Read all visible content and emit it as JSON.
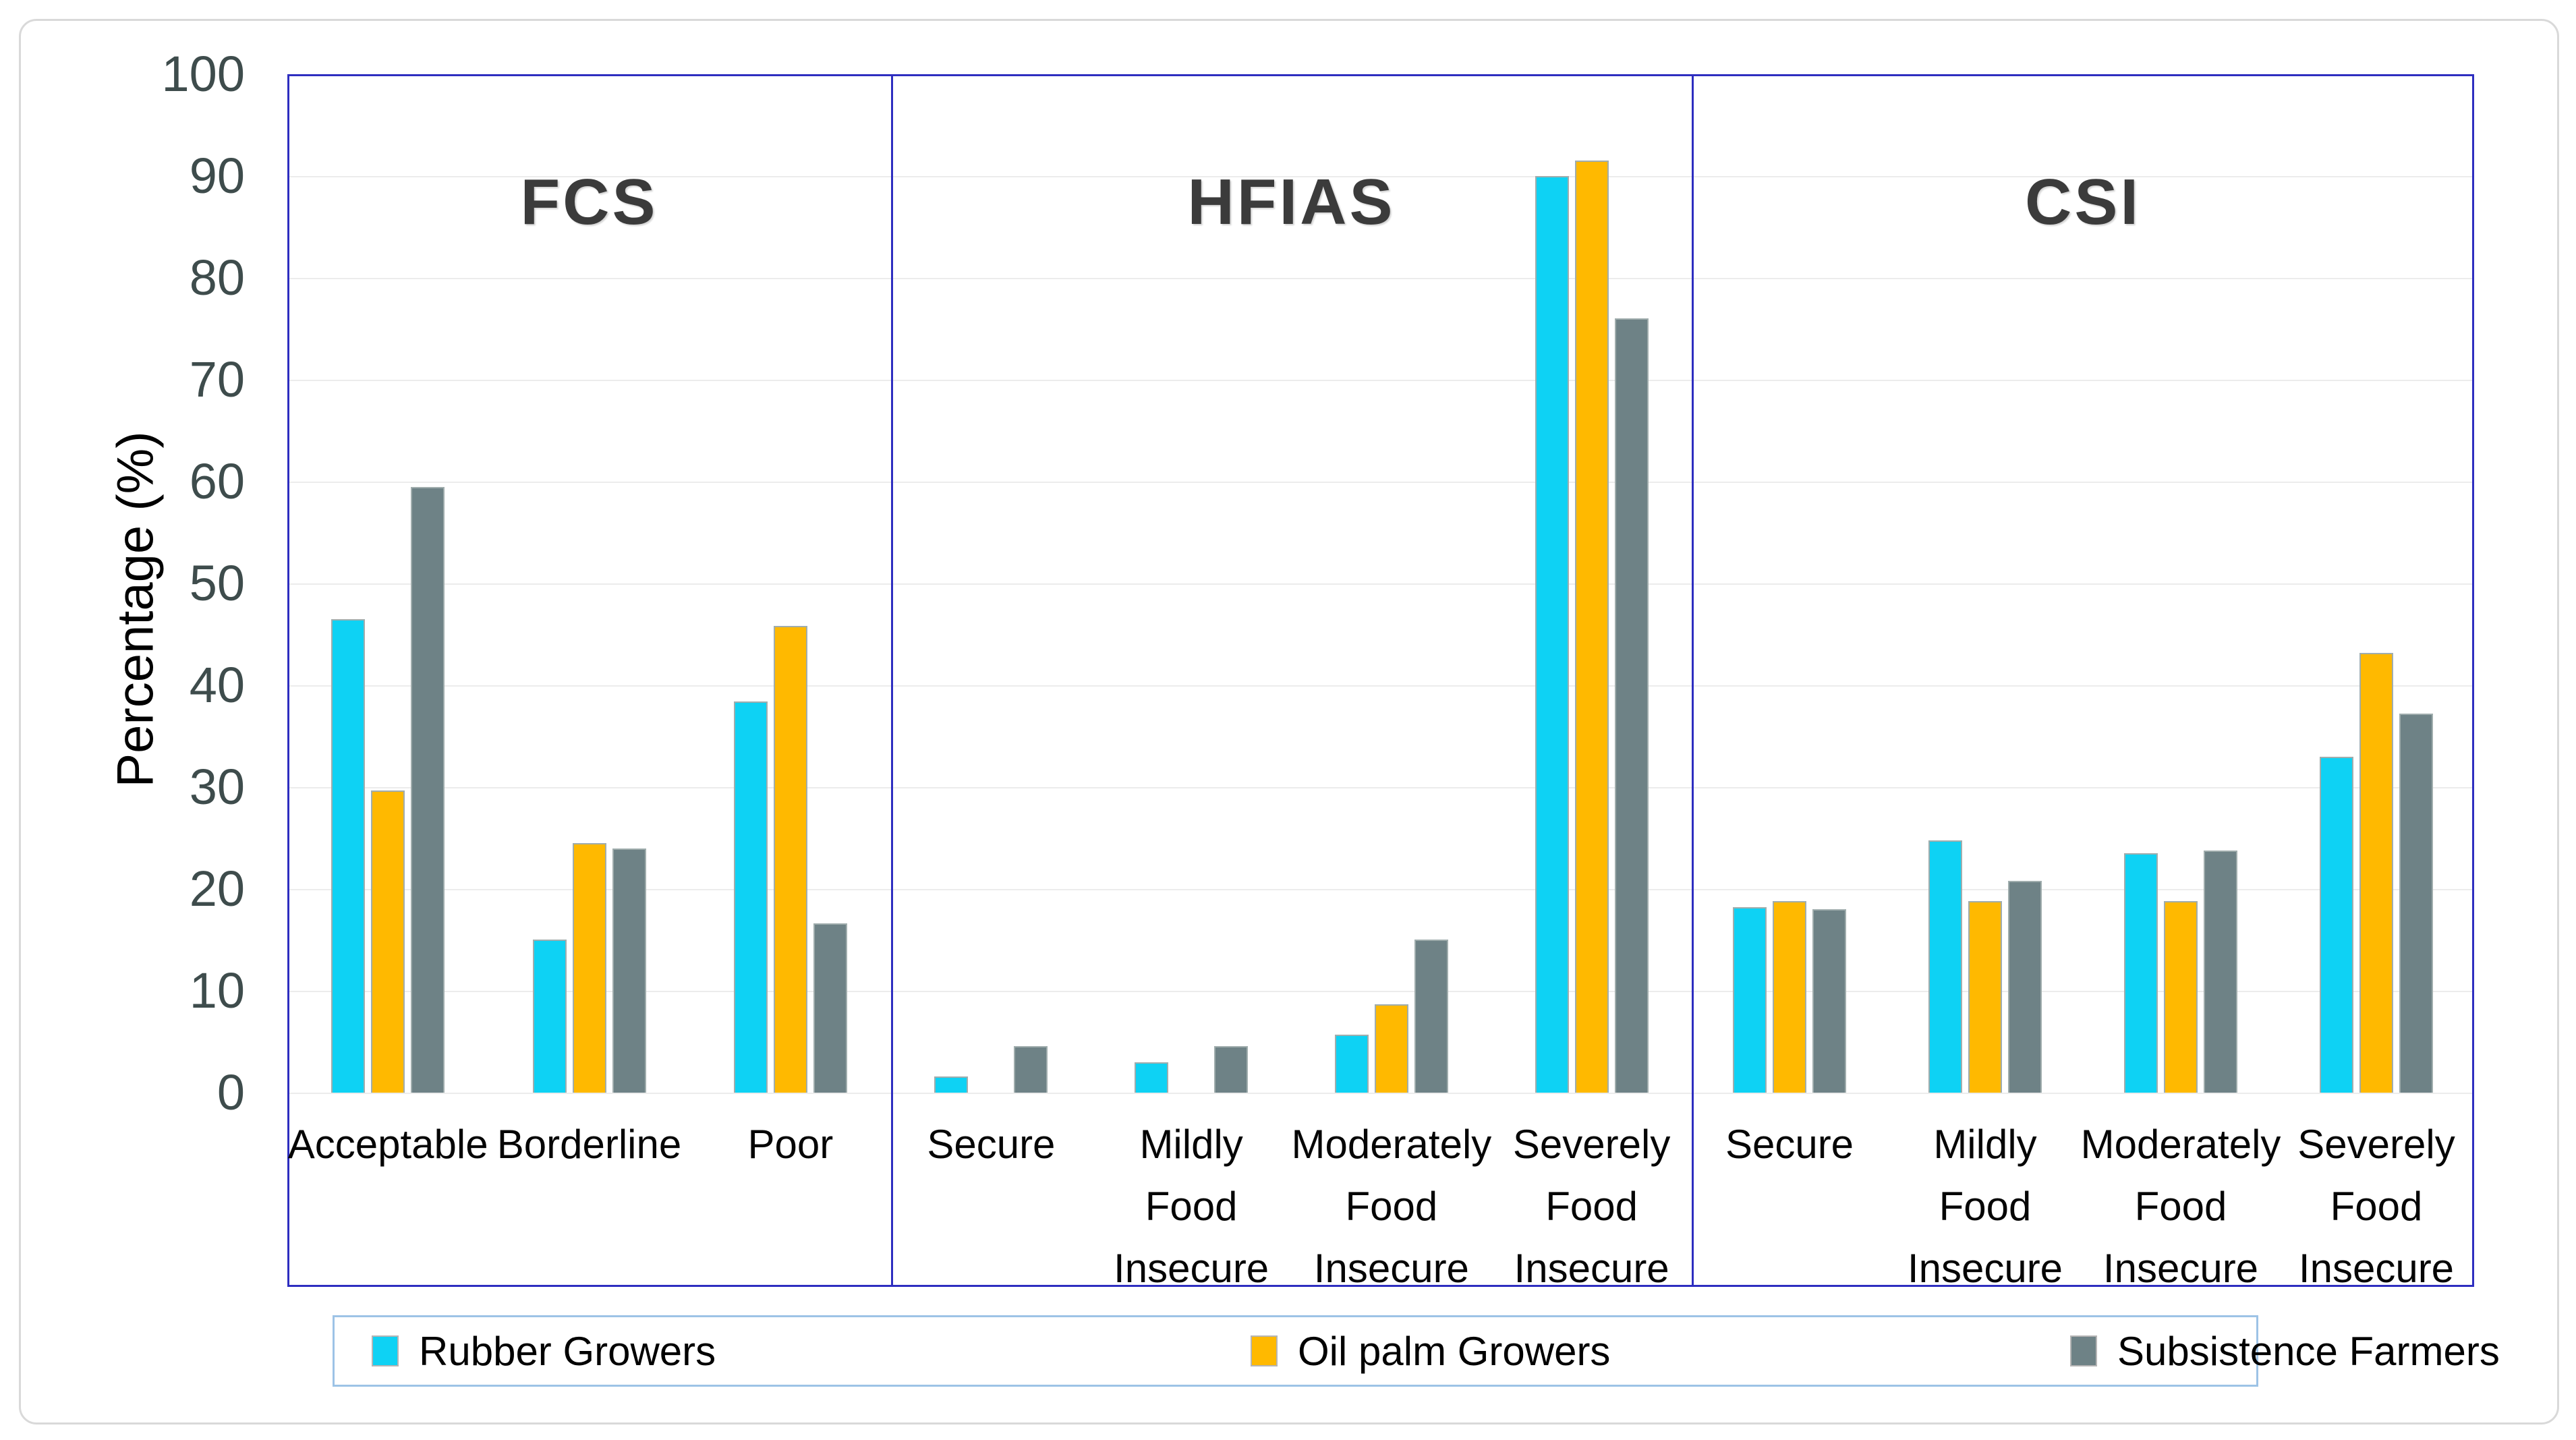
{
  "figure": {
    "y_axis_title": "Percentage (%)",
    "y_ticks": [
      0,
      10,
      20,
      30,
      40,
      50,
      60,
      70,
      80,
      90,
      100
    ],
    "colors": {
      "rubber": "#0ed2f4",
      "oilpalm": "#ffb900",
      "subsistence": "#6e8286",
      "plot_border": "#2e2ec0",
      "gridline": "#ececec",
      "tick_text": "#3e4c4c",
      "title_text": "#3b3b3b",
      "legend_border": "#9dc3e6",
      "outer_border": "#d9d9d9"
    },
    "legend": {
      "items": [
        {
          "label": "Rubber Growers",
          "color": "#0ed2f4"
        },
        {
          "label": "Oil palm Growers",
          "color": "#ffb900"
        },
        {
          "label": "Subsistence Farmers",
          "color": "#6e8286"
        }
      ]
    }
  },
  "chart_data": {
    "type": "bar",
    "title": "",
    "xlabel": "",
    "ylabel": "Percentage (%)",
    "ylim": [
      0,
      100
    ],
    "grid": true,
    "legend_position": "bottom",
    "series_names": [
      "Rubber Growers",
      "Oil palm Growers",
      "Subsistence Farmers"
    ],
    "panels": [
      {
        "title": "FCS",
        "categories": [
          "Acceptable",
          "Borderline",
          "Poor"
        ],
        "series": [
          {
            "name": "Rubber Growers",
            "values": [
              46.5,
              15.0,
              38.4
            ]
          },
          {
            "name": "Oil palm Growers",
            "values": [
              29.7,
              24.5,
              45.8
            ]
          },
          {
            "name": "Subsistence Farmers",
            "values": [
              59.5,
              24.0,
              16.6
            ]
          }
        ]
      },
      {
        "title": "HFIAS",
        "categories": [
          "Secure",
          "Mildly Food Insecure",
          "Moderately Food Insecure",
          "Severely Food Insecure"
        ],
        "series": [
          {
            "name": "Rubber Growers",
            "values": [
              1.6,
              3.0,
              5.7,
              90.0
            ]
          },
          {
            "name": "Oil palm Growers",
            "values": [
              0,
              0,
              8.7,
              91.5
            ]
          },
          {
            "name": "Subsistence Farmers",
            "values": [
              4.6,
              4.6,
              15.0,
              76.0
            ]
          }
        ]
      },
      {
        "title": "CSI",
        "categories": [
          "Secure",
          "Mildly Food Insecure",
          "Moderately Food Insecure",
          "Severely Food Insecure"
        ],
        "series": [
          {
            "name": "Rubber Growers",
            "values": [
              18.2,
              24.8,
              23.5,
              33.0
            ]
          },
          {
            "name": "Oil palm Growers",
            "values": [
              18.8,
              18.8,
              18.8,
              43.2
            ]
          },
          {
            "name": "Subsistence Farmers",
            "values": [
              18.0,
              20.8,
              23.8,
              37.2
            ]
          }
        ]
      }
    ]
  }
}
